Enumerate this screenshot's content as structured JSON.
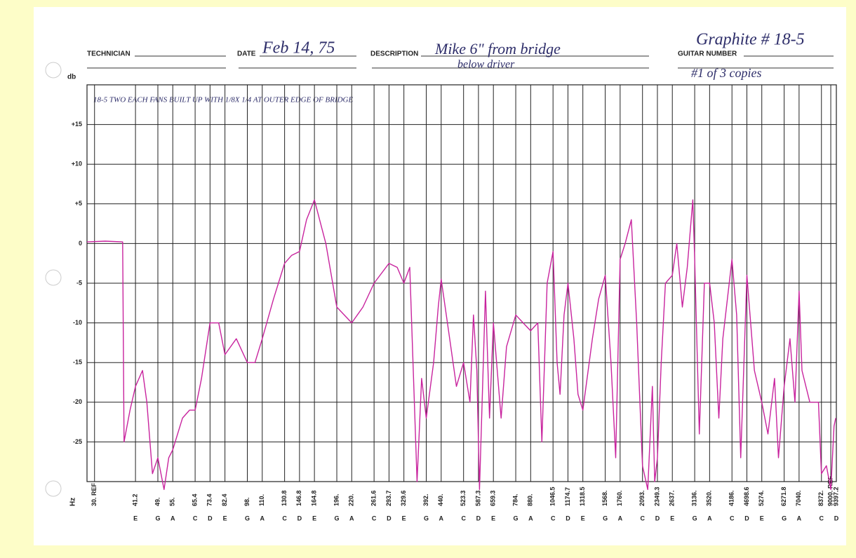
{
  "form": {
    "technician_label": "TECHNICIAN",
    "date_label": "DATE",
    "date": "Feb 14, 75",
    "description_label": "DESCRIPTION",
    "description": [
      "Mike 6\" from bridge",
      "below driver"
    ],
    "guitar_number_label": "GUITAR NUMBER",
    "guitar_number": "Graphite # 18-5",
    "copies": "#1 of 3 copies"
  },
  "chart_data": {
    "type": "line",
    "x_label": "Hz",
    "y_label": "db",
    "annotation": "18-5 TWO EACH FANS BUILT UP WITH 1/8X 1/4 AT OUTER EDGE OF BRIDGE",
    "xscale": "log",
    "grid": true,
    "color": "#c8249e",
    "xlim": [
      28.3,
      9397.2
    ],
    "xticks": [
      {
        "value": 30,
        "label": "30. REF"
      },
      41.2,
      {
        "value": 49,
        "label": "49."
      },
      {
        "value": 55,
        "label": "55."
      },
      65.4,
      73.4,
      82.4,
      {
        "value": 98,
        "label": "98."
      },
      {
        "value": 110,
        "label": "110."
      },
      130.8,
      146.8,
      164.8,
      {
        "value": 196,
        "label": "196."
      },
      {
        "value": 220,
        "label": "220."
      },
      261.6,
      293.7,
      329.6,
      {
        "value": 392,
        "label": "392."
      },
      {
        "value": 440,
        "label": "440."
      },
      523.3,
      587.3,
      659.3,
      {
        "value": 784,
        "label": "784."
      },
      {
        "value": 880,
        "label": "880."
      },
      1046.5,
      1174.7,
      1318.5,
      {
        "value": 1568,
        "label": "1568."
      },
      {
        "value": 1760,
        "label": "1760."
      },
      {
        "value": 2093,
        "label": "2093."
      },
      2349.3,
      {
        "value": 2637,
        "label": "2637."
      },
      {
        "value": 3136,
        "label": "3136."
      },
      {
        "value": 3520,
        "label": "3520."
      },
      {
        "value": 4186,
        "label": "4186."
      },
      4698.6,
      {
        "value": 5274,
        "label": "5274."
      },
      6271.8,
      {
        "value": 7040,
        "label": "7040."
      },
      {
        "value": 8372,
        "label": "8372."
      },
      {
        "value": 9000,
        "label": "9000. REF"
      },
      9397.2
    ],
    "xtick_notes": [
      null,
      "E",
      "G",
      "A",
      "C",
      "D",
      "E",
      "G",
      "A",
      "C",
      "D",
      "E",
      "G",
      "A",
      "C",
      "D",
      "E",
      "G",
      "A",
      "C",
      "D",
      "E",
      "G",
      "A",
      "C",
      "D",
      "E",
      "G",
      "A",
      "C",
      "D",
      "E",
      "G",
      "A",
      "C",
      "D",
      "E",
      "G",
      "A",
      "C",
      null,
      "D"
    ],
    "ylim": [
      -30,
      20
    ],
    "yticks": [
      {
        "value": 15,
        "label": "+15"
      },
      {
        "value": 10,
        "label": "+10"
      },
      {
        "value": 5,
        "label": "+5"
      },
      0,
      -5,
      -10,
      -15,
      -20,
      -25
    ],
    "x": [
      28.3,
      32.6,
      37.3,
      37.7,
      39.5,
      41.2,
      43.5,
      45,
      47,
      49,
      51.4,
      53.3,
      55,
      59.3,
      62.6,
      65.4,
      68.7,
      73.4,
      78.5,
      82.4,
      90,
      98,
      104,
      110,
      120,
      130.8,
      138,
      146.8,
      155,
      164.8,
      180,
      196,
      220,
      240,
      261.6,
      293.7,
      313,
      329.6,
      345,
      365,
      378,
      392,
      415,
      430,
      440,
      470,
      495,
      523.3,
      550,
      565,
      580,
      592,
      620,
      640,
      659.3,
      700,
      730,
      784,
      830,
      880,
      930,
      960,
      1000,
      1046.5,
      1080,
      1105,
      1140,
      1174.7,
      1230,
      1270,
      1318.5,
      1420,
      1490,
      1568,
      1640,
      1700,
      1760,
      1830,
      1920,
      2000,
      2093,
      2180,
      2260,
      2300,
      2349.3,
      2420,
      2500,
      2637,
      2730,
      2850,
      2960,
      3090,
      3136,
      3250,
      3380,
      3520,
      3650,
      3780,
      3900,
      4186,
      4340,
      4480,
      4698.6,
      4980,
      5274,
      5530,
      5820,
      6000,
      6271.8,
      6560,
      6820,
      7040,
      7200,
      7650,
      7980,
      8180,
      8372,
      8700,
      9000,
      9230,
      9350
    ],
    "values": [
      0.2,
      0.3,
      0.2,
      -25,
      -21,
      -18,
      -16,
      -20,
      -29,
      -27,
      -31,
      -27,
      -26,
      -22,
      -21,
      -21,
      -17,
      -10,
      -10,
      -14,
      -12,
      -15,
      -15,
      -12,
      -7,
      -2.5,
      -1.5,
      -1,
      3,
      5.5,
      0,
      -8,
      -10,
      -8,
      -5,
      -2.5,
      -3,
      -5,
      -3,
      -30,
      -17,
      -22,
      -15,
      -8,
      -4.5,
      -12,
      -18,
      -15,
      -20,
      -9,
      -16,
      -31,
      -6,
      -22,
      -10,
      -22,
      -13,
      -9,
      -10,
      -11,
      -10,
      -25,
      -5,
      -1,
      -15,
      -19,
      -9,
      -5,
      -12,
      -19,
      -21,
      -12,
      -7,
      -4,
      -15,
      -27,
      -2,
      0,
      3,
      -10,
      -28,
      -31,
      -18,
      -30,
      -27,
      -15,
      -5,
      -4,
      0,
      -8,
      -3,
      5.5,
      -2,
      -24,
      -5,
      -5,
      -10,
      -22,
      -12,
      -2,
      -9,
      -27,
      -4,
      -16,
      -20,
      -24,
      -17,
      -27,
      -18,
      -12,
      -20,
      -6,
      -16,
      -20,
      -20,
      -20,
      -29,
      -28,
      -31,
      -23,
      -22
    ]
  }
}
